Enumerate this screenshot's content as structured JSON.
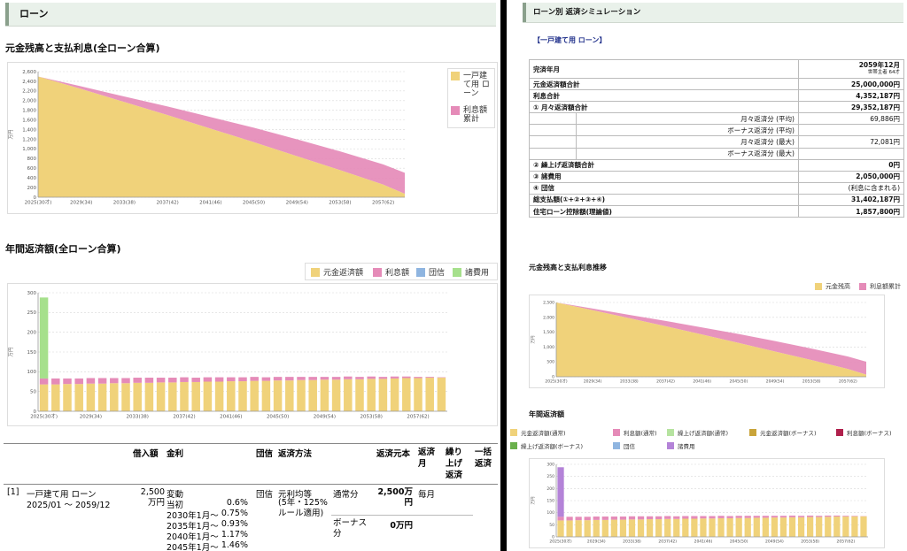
{
  "left": {
    "header": "ローン",
    "chart1": {
      "title": "元金残高と支払利息(全ローン合算)",
      "ylabel": "万円",
      "yticks": [
        "2,600",
        "2,400",
        "2,200",
        "2,000",
        "1,800",
        "1,600",
        "1,400",
        "1,200",
        "1,000",
        "800",
        "600",
        "400",
        "200",
        "0"
      ],
      "xticks": [
        "2025(30才)",
        "2029(34)",
        "2033(38)",
        "2037(42)",
        "2041(46)",
        "2045(50)",
        "2049(54)",
        "2053(58)",
        "2057(62)"
      ],
      "legend": [
        {
          "label": "一戸建て用 ローン",
          "color": "#f0d27a"
        },
        {
          "label": "利息額累計",
          "color": "#e58bb8"
        }
      ]
    },
    "chart2": {
      "title": "年間返済額(全ローン合算)",
      "ylabel": "万円",
      "yticks": [
        "300",
        "250",
        "200",
        "150",
        "100",
        "50",
        "0"
      ],
      "xticks": [
        "2025(30才)",
        "2029(34)",
        "2033(38)",
        "2037(42)",
        "2041(46)",
        "2045(50)",
        "2049(54)",
        "2053(58)",
        "2057(62)"
      ],
      "legend": [
        {
          "label": "元金返済額",
          "color": "#f0d27a"
        },
        {
          "label": "利息額",
          "color": "#e58bb8"
        },
        {
          "label": "団信",
          "color": "#8fb5e0"
        },
        {
          "label": "諸費用",
          "color": "#a6e08c"
        }
      ]
    },
    "table": {
      "headers": {
        "amount": "借入額",
        "rate": "金利",
        "dan": "団信",
        "method": "返済方法",
        "principal": "返済元本",
        "month": "返済月",
        "kuri": "繰り上げ返済",
        "ikkatsu": "一括返済"
      },
      "row": {
        "no": "[1]",
        "name": "一戸建て用 ローン",
        "period": "2025/01 ～ 2059/12",
        "amount": "2,500万円",
        "rate_type": "変動",
        "rates": [
          {
            "label": "当初",
            "value": "0.6%"
          },
          {
            "label": "2030年1月～",
            "value": "0.75%"
          },
          {
            "label": "2035年1月～",
            "value": "0.93%"
          },
          {
            "label": "2040年1月～",
            "value": "1.17%"
          },
          {
            "label": "2045年1月～",
            "value": "1.46%"
          }
        ],
        "dan": "団信",
        "method": "元利均等",
        "method_note": "(5年・125%ルール適用)",
        "normal_label": "通常分",
        "normal_value": "2,500万円",
        "normal_month": "毎月",
        "bonus_label": "ボーナス分",
        "bonus_value": "0万円"
      }
    }
  },
  "right": {
    "header": "ローン別 返済シミュレーション",
    "loan_title": "【一戸建て用 ローン】",
    "summary": {
      "kansai_label": "完済年月",
      "kansai_value": "2059年12月",
      "kansai_sub": "世帯主者 64才",
      "rows": [
        {
          "label": "元金返済額合計",
          "value": "25,000,000円"
        },
        {
          "label": "利息合計",
          "value": "4,352,187円"
        },
        {
          "label": "① 月々返済額合計",
          "value": "29,352,187円"
        }
      ],
      "subrows": [
        {
          "label": "月々返済分 (平均)",
          "value": "69,886円"
        },
        {
          "label": "ボーナス返済分 (平均)",
          "value": ""
        },
        {
          "label": "月々返済分 (最大)",
          "value": "72,081円"
        },
        {
          "label": "ボーナス返済分 (最大)",
          "value": ""
        }
      ],
      "rows2": [
        {
          "label": "② 繰上げ返済額合計",
          "value": "0円"
        },
        {
          "label": "③ 諸費用",
          "value": "2,050,000円"
        },
        {
          "label": "④ 団信",
          "value": "(利息に含まれる)"
        },
        {
          "label": "総支払額(①+②+③+④)",
          "value": "31,402,187円"
        },
        {
          "label": "住宅ローン控除額(理論値)",
          "value": "1,857,800円"
        }
      ]
    },
    "chart1": {
      "title": "元金残高と支払利息推移",
      "ylabel": "万円",
      "yticks": [
        "2,500",
        "2,000",
        "1,500",
        "1,000",
        "500",
        "0"
      ],
      "xticks": [
        "2025(30才)",
        "2029(34)",
        "2033(38)",
        "2037(42)",
        "2041(46)",
        "2045(50)",
        "2049(54)",
        "2053(58)",
        "2057(62)"
      ],
      "legend": [
        {
          "label": "元金残高",
          "color": "#f0d27a"
        },
        {
          "label": "利息額累計",
          "color": "#e58bb8"
        }
      ]
    },
    "chart2": {
      "title": "年間返済額",
      "ylabel": "万円",
      "yticks": [
        "300",
        "250",
        "200",
        "150",
        "100",
        "50",
        "0"
      ],
      "xticks": [
        "2025(30才)",
        "2029(34)",
        "2033(38)",
        "2037(42)",
        "2041(46)",
        "2045(50)",
        "2049(54)",
        "2053(58)",
        "2057(62)"
      ],
      "legend": [
        {
          "label": "元金返済額(通常)",
          "color": "#f0d27a"
        },
        {
          "label": "利息額(通常)",
          "color": "#e58bb8"
        },
        {
          "label": "繰上げ返済額(通常)",
          "color": "#b6e3a0"
        },
        {
          "label": "元金返済額(ボーナス)",
          "color": "#c9a43a"
        },
        {
          "label": "利息額(ボーナス)",
          "color": "#b0204c"
        },
        {
          "label": "繰上げ返済額(ボーナス)",
          "color": "#6ab04c"
        },
        {
          "label": "団信",
          "color": "#8fb5e0"
        },
        {
          "label": "諸費用",
          "color": "#b483d8"
        }
      ]
    }
  },
  "chart_data": [
    {
      "type": "area",
      "title": "元金残高と支払利息(全ローン合算)",
      "ylabel": "万円",
      "ylim": [
        0,
        2600
      ],
      "x": [
        2025,
        2029,
        2033,
        2037,
        2041,
        2045,
        2049,
        2053,
        2057,
        2059
      ],
      "series": [
        {
          "name": "一戸建て用 ローン",
          "values": [
            2500,
            2240,
            1970,
            1700,
            1420,
            1140,
            850,
            560,
            260,
            70
          ]
        },
        {
          "name": "利息額累計",
          "values": [
            0,
            55,
            115,
            180,
            240,
            300,
            350,
            390,
            420,
            435
          ]
        }
      ]
    },
    {
      "type": "bar",
      "title": "年間返済額(全ローン合算)",
      "ylabel": "万円",
      "ylim": [
        0,
        300
      ],
      "categories": [
        "2025",
        "2026",
        "2027",
        "2028",
        "2029",
        "2030",
        "2031",
        "2032",
        "2033",
        "2034",
        "2035",
        "2036",
        "2037",
        "2038",
        "2039",
        "2040",
        "2041",
        "2042",
        "2043",
        "2044",
        "2045",
        "2046",
        "2047",
        "2048",
        "2049",
        "2050",
        "2051",
        "2052",
        "2053",
        "2054",
        "2055",
        "2056",
        "2057",
        "2058",
        "2059"
      ],
      "series": [
        {
          "name": "元金返済額",
          "values": [
            68,
            68,
            69,
            69,
            70,
            70,
            71,
            71,
            72,
            72,
            73,
            73,
            74,
            74,
            75,
            75,
            76,
            76,
            77,
            77,
            78,
            78,
            79,
            79,
            80,
            80,
            81,
            81,
            82,
            82,
            83,
            84,
            84,
            85,
            85
          ]
        },
        {
          "name": "利息額",
          "values": [
            15,
            15,
            14,
            14,
            14,
            14,
            13,
            13,
            13,
            13,
            12,
            12,
            12,
            11,
            11,
            11,
            10,
            10,
            10,
            9,
            9,
            9,
            8,
            8,
            7,
            7,
            7,
            6,
            6,
            5,
            5,
            4,
            3,
            2,
            1
          ]
        },
        {
          "name": "団信",
          "values": [
            0,
            0,
            0,
            0,
            0,
            0,
            0,
            0,
            0,
            0,
            0,
            0,
            0,
            0,
            0,
            0,
            0,
            0,
            0,
            0,
            0,
            0,
            0,
            0,
            0,
            0,
            0,
            0,
            0,
            0,
            0,
            0,
            0,
            0,
            0
          ]
        },
        {
          "name": "諸費用",
          "values": [
            205,
            0,
            0,
            0,
            0,
            0,
            0,
            0,
            0,
            0,
            0,
            0,
            0,
            0,
            0,
            0,
            0,
            0,
            0,
            0,
            0,
            0,
            0,
            0,
            0,
            0,
            0,
            0,
            0,
            0,
            0,
            0,
            0,
            0,
            0
          ]
        }
      ]
    },
    {
      "type": "area",
      "title": "元金残高と支払利息推移",
      "ylabel": "万円",
      "ylim": [
        0,
        2500
      ],
      "x": [
        2025,
        2029,
        2033,
        2037,
        2041,
        2045,
        2049,
        2053,
        2057,
        2059
      ],
      "series": [
        {
          "name": "元金残高",
          "values": [
            2500,
            2240,
            1970,
            1700,
            1420,
            1140,
            850,
            560,
            260,
            70
          ]
        },
        {
          "name": "利息額累計",
          "values": [
            0,
            55,
            115,
            180,
            240,
            300,
            350,
            390,
            420,
            435
          ]
        }
      ]
    },
    {
      "type": "bar",
      "title": "年間返済額",
      "ylabel": "万円",
      "ylim": [
        0,
        300
      ],
      "categories": [
        "2025",
        "2026",
        "2027",
        "2028",
        "2029",
        "2030",
        "2031",
        "2032",
        "2033",
        "2034",
        "2035",
        "2036",
        "2037",
        "2038",
        "2039",
        "2040",
        "2041",
        "2042",
        "2043",
        "2044",
        "2045",
        "2046",
        "2047",
        "2048",
        "2049",
        "2050",
        "2051",
        "2052",
        "2053",
        "2054",
        "2055",
        "2056",
        "2057",
        "2058",
        "2059"
      ],
      "series": [
        {
          "name": "元金返済額(通常)",
          "values": [
            68,
            68,
            69,
            69,
            70,
            70,
            71,
            71,
            72,
            72,
            73,
            73,
            74,
            74,
            75,
            75,
            76,
            76,
            77,
            77,
            78,
            78,
            79,
            79,
            80,
            80,
            81,
            81,
            82,
            82,
            83,
            84,
            84,
            85,
            85
          ]
        },
        {
          "name": "利息額(通常)",
          "values": [
            15,
            15,
            14,
            14,
            14,
            14,
            13,
            13,
            13,
            13,
            12,
            12,
            12,
            11,
            11,
            11,
            10,
            10,
            10,
            9,
            9,
            9,
            8,
            8,
            7,
            7,
            7,
            6,
            6,
            5,
            5,
            4,
            3,
            2,
            1
          ]
        },
        {
          "name": "諸費用",
          "values": [
            205,
            0,
            0,
            0,
            0,
            0,
            0,
            0,
            0,
            0,
            0,
            0,
            0,
            0,
            0,
            0,
            0,
            0,
            0,
            0,
            0,
            0,
            0,
            0,
            0,
            0,
            0,
            0,
            0,
            0,
            0,
            0,
            0,
            0,
            0
          ]
        }
      ]
    }
  ]
}
